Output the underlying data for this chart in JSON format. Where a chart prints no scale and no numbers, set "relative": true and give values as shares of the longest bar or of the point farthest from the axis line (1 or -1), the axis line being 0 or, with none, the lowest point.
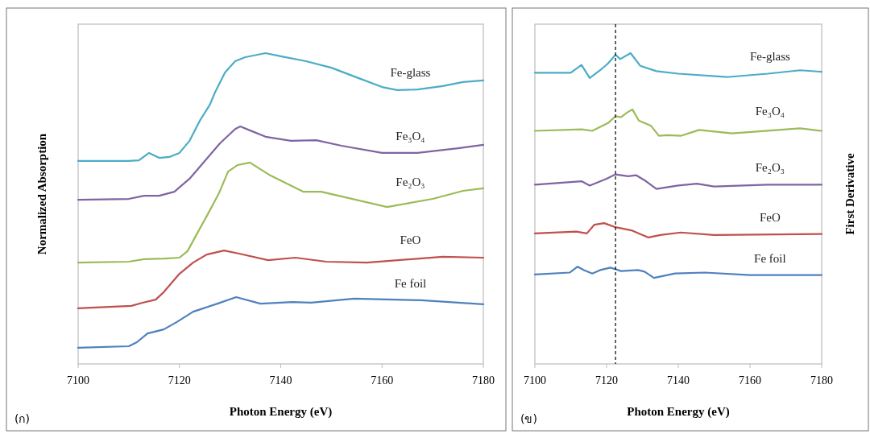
{
  "chart_data": [
    {
      "type": "line",
      "relative": true,
      "xlabel": "Photon Energy (eV)",
      "ylabel": "Normalized Absorption",
      "xlim": [
        7100,
        7180
      ],
      "xticks": [
        7100,
        7120,
        7140,
        7160,
        7180
      ],
      "tick_labels": "x",
      "annotations": [
        "(ก)"
      ],
      "series": [
        {
          "name": "Fe-glass",
          "color": "#4bacc6",
          "x": [
            7100,
            7110,
            7112,
            7114,
            7116,
            7118,
            7120,
            7122,
            7124,
            7126,
            7127,
            7129,
            7131,
            7133,
            7137,
            7140,
            7145,
            7150,
            7155,
            7160,
            7163,
            7167,
            7172,
            7176,
            7180
          ],
          "values": [
            0.653,
            0.653,
            0.655,
            0.679,
            0.663,
            0.666,
            0.679,
            0.718,
            0.782,
            0.834,
            0.873,
            0.938,
            0.974,
            0.987,
            1,
            0.99,
            0.974,
            0.953,
            0.922,
            0.891,
            0.881,
            0.883,
            0.894,
            0.907,
            0.912
          ]
        },
        {
          "name": "Fe₃O₄",
          "color": "#8064a2",
          "x": [
            7100,
            7110,
            7113,
            7116,
            7119,
            7122,
            7125,
            7128,
            7131,
            7132,
            7134,
            7137,
            7142,
            7147,
            7152,
            7160,
            7167,
            7175,
            7180
          ],
          "values": [
            0.528,
            0.531,
            0.541,
            0.541,
            0.554,
            0.596,
            0.653,
            0.71,
            0.756,
            0.764,
            0.751,
            0.731,
            0.718,
            0.72,
            0.702,
            0.679,
            0.679,
            0.694,
            0.705
          ]
        },
        {
          "name": "Fe₂O₃",
          "color": "#9bbb59",
          "x": [
            7100,
            7110,
            7113,
            7117,
            7120,
            7121.6,
            7123.5,
            7125.5,
            7127.8,
            7129.6,
            7131.5,
            7133.9,
            7138,
            7144.5,
            7148,
            7161,
            7170,
            7176,
            7180
          ],
          "values": [
            0.326,
            0.329,
            0.337,
            0.339,
            0.342,
            0.363,
            0.42,
            0.479,
            0.549,
            0.619,
            0.64,
            0.648,
            0.606,
            0.554,
            0.554,
            0.505,
            0.531,
            0.557,
            0.565
          ]
        },
        {
          "name": "FeO",
          "color": "#c0504d",
          "x": [
            7100,
            7110.5,
            7112.7,
            7115.3,
            7116.9,
            7120,
            7122.7,
            7125.4,
            7128.8,
            7131.8,
            7137.5,
            7142.9,
            7149,
            7157,
            7172,
            7180
          ],
          "values": [
            0.179,
            0.187,
            0.197,
            0.207,
            0.231,
            0.29,
            0.326,
            0.352,
            0.365,
            0.355,
            0.334,
            0.342,
            0.329,
            0.326,
            0.345,
            0.342
          ]
        },
        {
          "name": "Fe foil",
          "color": "#4f81bd",
          "x": [
            7100,
            7110,
            7111.6,
            7113.7,
            7116.9,
            7119.5,
            7122.7,
            7127.5,
            7131.2,
            7136,
            7142.3,
            7146,
            7154.5,
            7167.7,
            7180
          ],
          "values": [
            0.052,
            0.057,
            0.07,
            0.098,
            0.111,
            0.135,
            0.168,
            0.194,
            0.215,
            0.194,
            0.199,
            0.197,
            0.21,
            0.205,
            0.192
          ]
        }
      ]
    },
    {
      "type": "line",
      "relative": true,
      "xlabel": "Photon Energy (eV)",
      "ylabel": "First Derivative",
      "xlim": [
        7100,
        7180
      ],
      "xticks": [
        7100,
        7120,
        7140,
        7160,
        7180
      ],
      "tick_labels": "x",
      "annotations": [
        "(ข)"
      ],
      "ref_lines": [
        {
          "axis": "x",
          "value": 7122.5,
          "color": "#000000",
          "line_style": "dashed"
        }
      ],
      "series": [
        {
          "name": "Fe-glass",
          "color": "#4bacc6",
          "x": [
            7100,
            7110,
            7113,
            7115.3,
            7118.2,
            7120.4,
            7122.5,
            7123.8,
            7126.7,
            7129.4,
            7133.9,
            7140,
            7153.5,
            7165,
            7174,
            7180
          ],
          "values": [
            0.937,
            0.937,
            0.962,
            0.92,
            0.945,
            0.967,
            0.995,
            0.981,
            1,
            0.959,
            0.942,
            0.934,
            0.923,
            0.934,
            0.945,
            0.94
          ]
        },
        {
          "name": "Fe₃O₄",
          "color": "#9bbb59",
          "x": [
            7100,
            7113,
            7116,
            7120.4,
            7122.5,
            7124,
            7125.6,
            7127.2,
            7129,
            7132.4,
            7134.6,
            7137,
            7140.7,
            7145.8,
            7155,
            7174,
            7180
          ],
          "values": [
            0.75,
            0.755,
            0.75,
            0.775,
            0.797,
            0.794,
            0.808,
            0.819,
            0.783,
            0.766,
            0.734,
            0.736,
            0.734,
            0.753,
            0.742,
            0.758,
            0.75
          ]
        },
        {
          "name": "Fe₂O₃",
          "color": "#8064a2",
          "x": [
            7100,
            7113,
            7115.3,
            7120,
            7122.5,
            7126,
            7128.3,
            7131,
            7133.9,
            7140,
            7145.2,
            7150,
            7165,
            7180
          ],
          "values": [
            0.577,
            0.588,
            0.574,
            0.596,
            0.61,
            0.604,
            0.607,
            0.588,
            0.563,
            0.574,
            0.58,
            0.571,
            0.577,
            0.577
          ]
        },
        {
          "name": "FeO",
          "color": "#c0504d",
          "x": [
            7100,
            7111.5,
            7114.5,
            7116.6,
            7119.3,
            7122.5,
            7127.2,
            7129.4,
            7131.7,
            7135,
            7140.7,
            7150,
            7180
          ],
          "values": [
            0.42,
            0.426,
            0.42,
            0.448,
            0.453,
            0.44,
            0.429,
            0.418,
            0.407,
            0.415,
            0.423,
            0.415,
            0.418
          ]
        },
        {
          "name": "Fe foil",
          "color": "#4f81bd",
          "x": [
            7100,
            7109.7,
            7111.9,
            7113.7,
            7116,
            7118.2,
            7121.1,
            7124,
            7128.8,
            7130.6,
            7133.2,
            7139.1,
            7147.4,
            7160,
            7180
          ],
          "values": [
            0.288,
            0.294,
            0.313,
            0.302,
            0.291,
            0.302,
            0.31,
            0.299,
            0.302,
            0.297,
            0.277,
            0.291,
            0.294,
            0.286,
            0.286
          ]
        }
      ]
    }
  ]
}
